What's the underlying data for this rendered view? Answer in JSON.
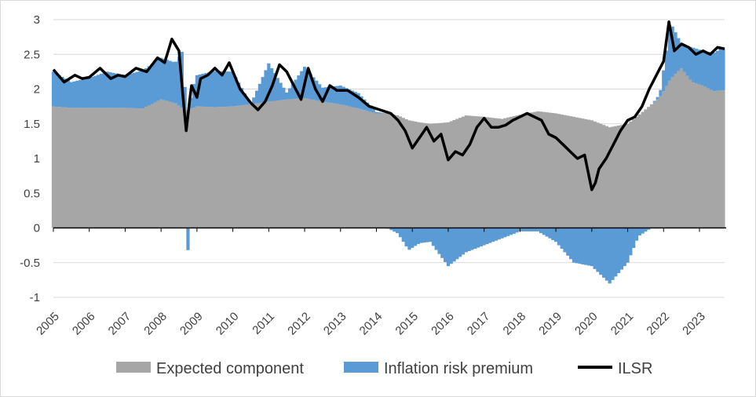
{
  "chart_data": {
    "type": "area",
    "title": "",
    "xlabel": "",
    "ylabel": "",
    "ylim": [
      -1,
      3
    ],
    "yticks": [
      -1,
      -0.5,
      0,
      0.5,
      1,
      1.5,
      2,
      2.5,
      3
    ],
    "ytick_labels": [
      "-1",
      "-0.5",
      "0",
      "0.5",
      "1",
      "1.5",
      "2",
      "2.5",
      "3"
    ],
    "xlim": [
      2005.0,
      2023.7
    ],
    "xticks": [
      2005,
      2006,
      2007,
      2008,
      2009,
      2010,
      2011,
      2012,
      2013,
      2014,
      2015,
      2016,
      2017,
      2018,
      2019,
      2020,
      2021,
      2022,
      2023
    ],
    "xtick_labels": [
      "2005",
      "2006",
      "2007",
      "2008",
      "2009",
      "2010",
      "2011",
      "2012",
      "2013",
      "2014",
      "2015",
      "2016",
      "2017",
      "2018",
      "2019",
      "2020",
      "2021",
      "2022",
      "2023"
    ],
    "grid": "horizontal",
    "legend_position": "bottom",
    "colors": {
      "expected": "#a6a6a6",
      "premium": "#5b9bd5",
      "ilsr": "#000000",
      "grid": "#d9d9d9",
      "axis": "#000000"
    },
    "series": [
      {
        "name": "Expected component",
        "kind": "stacked-bar",
        "x": [
          2005.0,
          2005.5,
          2006.0,
          2006.5,
          2007.0,
          2007.5,
          2008.0,
          2008.4,
          2008.6,
          2008.75,
          2008.85,
          2009.0,
          2009.5,
          2010.0,
          2010.5,
          2011.0,
          2011.5,
          2012.0,
          2012.5,
          2013.0,
          2013.5,
          2014.0,
          2014.3,
          2014.6,
          2014.9,
          2015.2,
          2015.5,
          2016.0,
          2016.5,
          2017.0,
          2017.5,
          2018.0,
          2018.5,
          2019.0,
          2019.5,
          2020.0,
          2020.5,
          2021.0,
          2021.3,
          2021.6,
          2021.9,
          2022.2,
          2022.5,
          2022.8,
          2023.1,
          2023.4,
          2023.6
        ],
        "values": [
          1.75,
          1.73,
          1.73,
          1.73,
          1.73,
          1.72,
          1.85,
          1.8,
          1.72,
          1.7,
          1.72,
          1.75,
          1.74,
          1.75,
          1.78,
          1.82,
          1.85,
          1.87,
          1.82,
          1.78,
          1.72,
          1.65,
          1.65,
          1.62,
          1.55,
          1.52,
          1.5,
          1.52,
          1.62,
          1.6,
          1.57,
          1.63,
          1.68,
          1.65,
          1.6,
          1.55,
          1.45,
          1.5,
          1.62,
          1.75,
          1.88,
          2.15,
          2.3,
          2.1,
          2.05,
          1.97,
          1.98
        ]
      },
      {
        "name": "Inflation risk premium",
        "kind": "stacked-bar",
        "x": [
          2005.0,
          2005.5,
          2006.0,
          2006.5,
          2007.0,
          2007.5,
          2008.0,
          2008.4,
          2008.6,
          2008.75,
          2008.85,
          2009.0,
          2009.5,
          2010.0,
          2010.5,
          2011.0,
          2011.5,
          2012.0,
          2012.5,
          2013.0,
          2013.5,
          2014.0,
          2014.3,
          2014.6,
          2014.9,
          2015.2,
          2015.5,
          2016.0,
          2016.5,
          2017.0,
          2017.5,
          2018.0,
          2018.5,
          2019.0,
          2019.5,
          2020.0,
          2020.5,
          2021.0,
          2021.3,
          2021.6,
          2021.9,
          2022.2,
          2022.5,
          2022.8,
          2023.1,
          2023.4,
          2023.6
        ],
        "values": [
          0.5,
          0.37,
          0.43,
          0.52,
          0.47,
          0.55,
          0.6,
          0.58,
          0.83,
          -0.32,
          0.25,
          0.45,
          0.52,
          0.5,
          0.0,
          0.55,
          0.1,
          0.45,
          0.2,
          0.27,
          0.22,
          0.02,
          0.0,
          -0.08,
          -0.32,
          -0.22,
          -0.2,
          -0.55,
          -0.35,
          -0.25,
          -0.15,
          -0.05,
          -0.05,
          -0.2,
          -0.5,
          -0.55,
          -0.8,
          -0.5,
          -0.12,
          -0.02,
          0.05,
          0.8,
          0.35,
          0.5,
          0.5,
          0.55,
          0.6
        ]
      },
      {
        "name": "ILSR",
        "kind": "line",
        "x": [
          2005.0,
          2005.3,
          2005.6,
          2005.8,
          2006.0,
          2006.3,
          2006.6,
          2006.8,
          2007.0,
          2007.3,
          2007.6,
          2007.9,
          2008.1,
          2008.3,
          2008.5,
          2008.6,
          2008.7,
          2008.8,
          2008.85,
          2009.0,
          2009.1,
          2009.3,
          2009.5,
          2009.7,
          2009.9,
          2010.2,
          2010.5,
          2010.7,
          2010.9,
          2011.1,
          2011.3,
          2011.5,
          2011.7,
          2011.9,
          2012.1,
          2012.3,
          2012.5,
          2012.7,
          2012.9,
          2013.2,
          2013.5,
          2013.8,
          2014.1,
          2014.4,
          2014.6,
          2014.8,
          2015.0,
          2015.2,
          2015.4,
          2015.6,
          2015.8,
          2016.0,
          2016.2,
          2016.4,
          2016.6,
          2016.8,
          2017.0,
          2017.2,
          2017.4,
          2017.6,
          2017.8,
          2018.0,
          2018.2,
          2018.4,
          2018.6,
          2018.8,
          2019.0,
          2019.2,
          2019.4,
          2019.6,
          2019.8,
          2020.0,
          2020.1,
          2020.2,
          2020.4,
          2020.6,
          2020.8,
          2021.0,
          2021.2,
          2021.4,
          2021.6,
          2021.8,
          2022.0,
          2022.15,
          2022.3,
          2022.5,
          2022.7,
          2022.9,
          2023.1,
          2023.3,
          2023.5,
          2023.7
        ],
        "values": [
          2.28,
          2.1,
          2.2,
          2.15,
          2.17,
          2.3,
          2.15,
          2.2,
          2.18,
          2.3,
          2.25,
          2.45,
          2.38,
          2.72,
          2.55,
          1.95,
          1.4,
          1.85,
          2.05,
          1.88,
          2.15,
          2.2,
          2.3,
          2.2,
          2.38,
          2.0,
          1.8,
          1.7,
          1.82,
          2.05,
          2.35,
          2.25,
          2.05,
          1.85,
          2.3,
          2.0,
          1.82,
          2.05,
          1.98,
          1.98,
          1.88,
          1.75,
          1.7,
          1.65,
          1.55,
          1.4,
          1.15,
          1.3,
          1.45,
          1.25,
          1.35,
          0.98,
          1.1,
          1.05,
          1.2,
          1.45,
          1.58,
          1.45,
          1.45,
          1.48,
          1.55,
          1.6,
          1.65,
          1.6,
          1.55,
          1.35,
          1.3,
          1.2,
          1.1,
          1.0,
          1.05,
          0.55,
          0.65,
          0.85,
          1.0,
          1.2,
          1.4,
          1.55,
          1.6,
          1.75,
          2.0,
          2.2,
          2.4,
          2.97,
          2.55,
          2.65,
          2.6,
          2.5,
          2.55,
          2.5,
          2.6,
          2.58
        ]
      }
    ]
  }
}
